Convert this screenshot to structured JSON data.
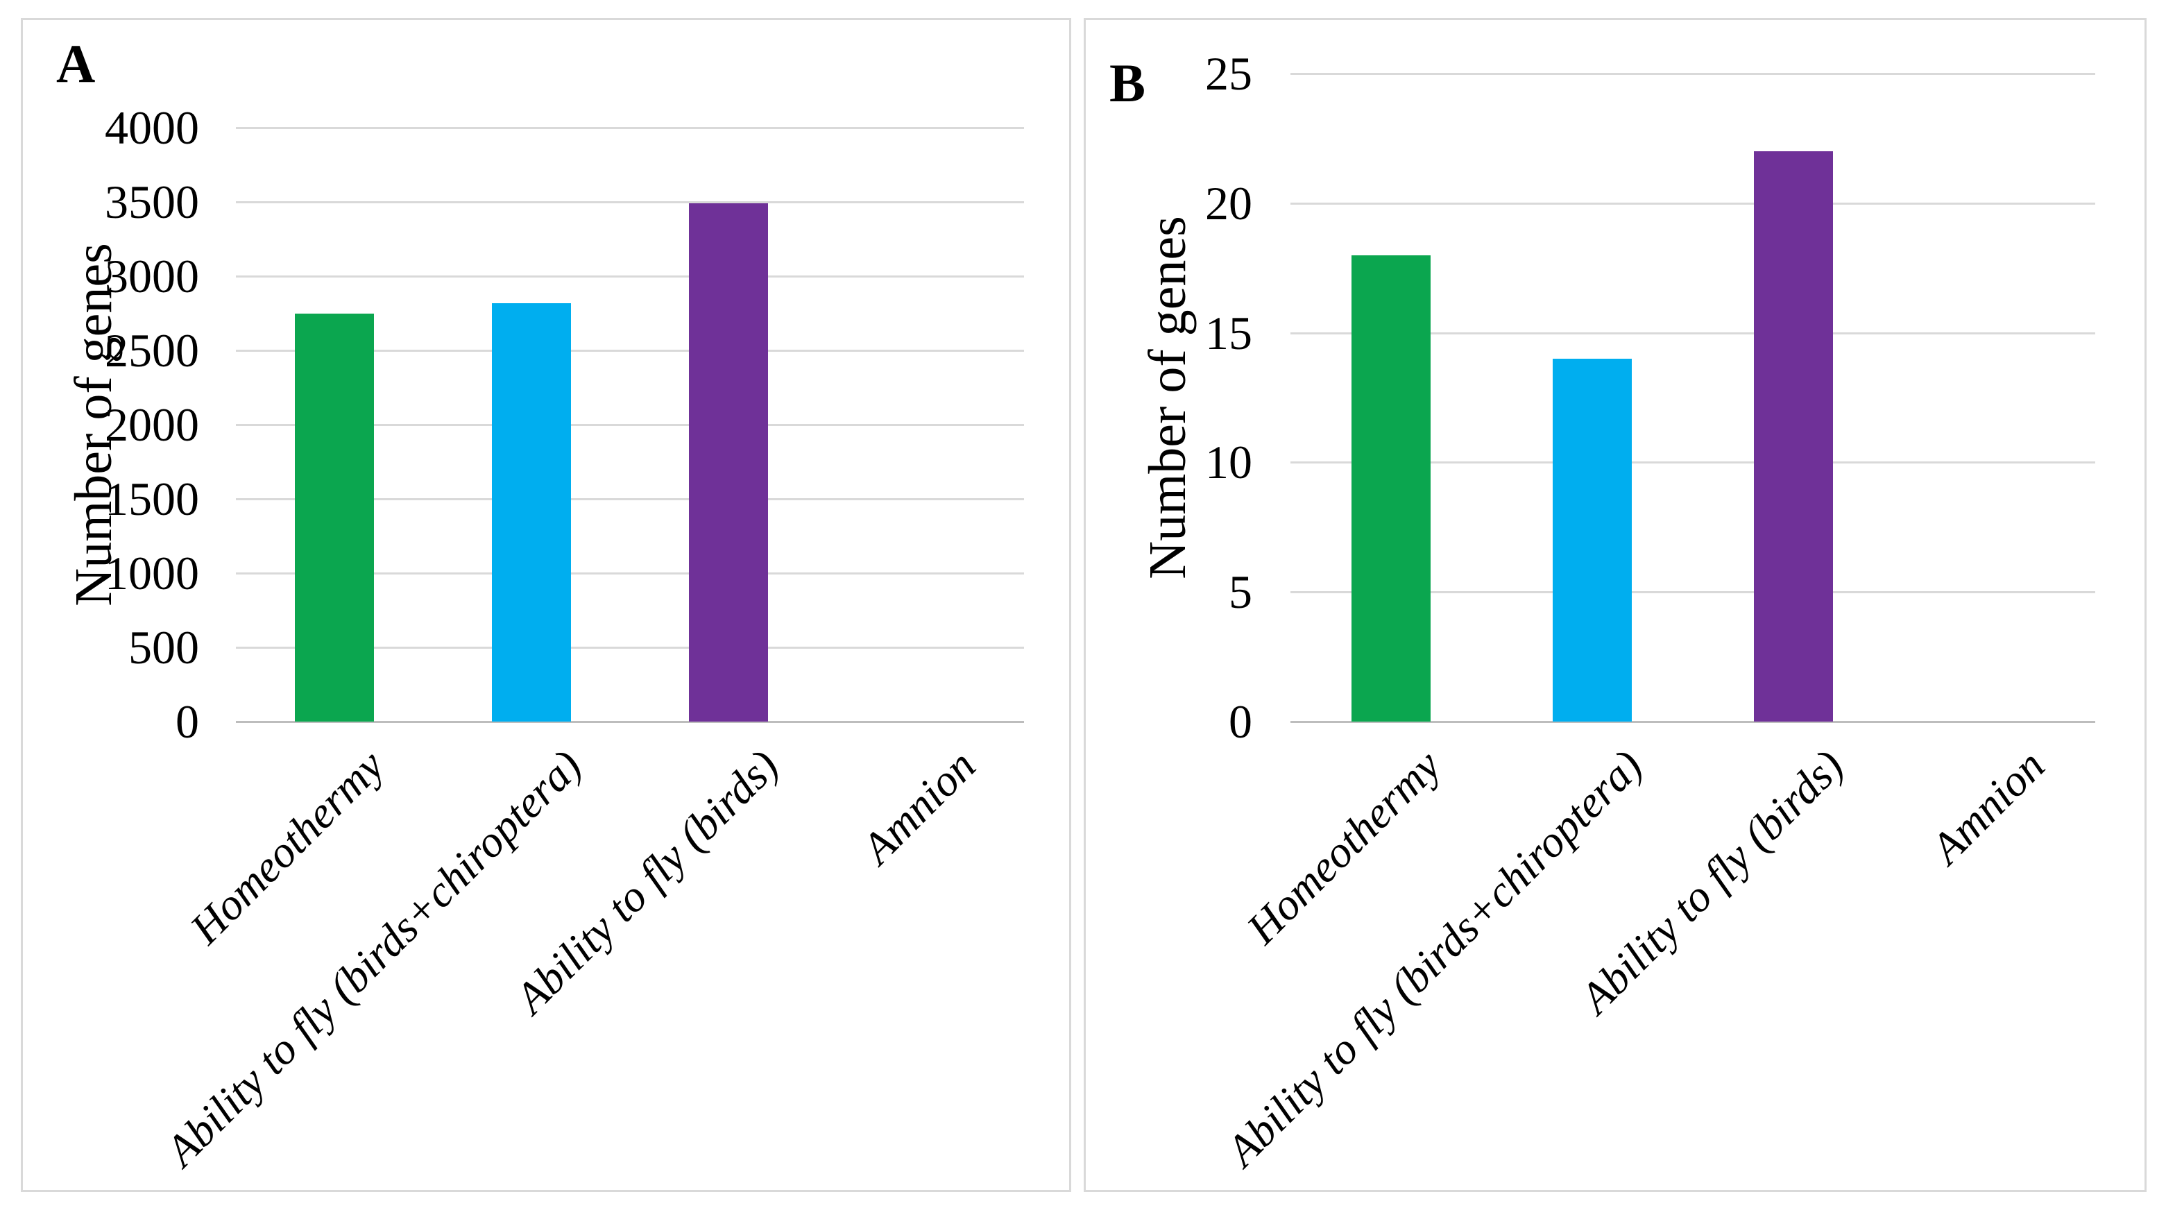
{
  "figure": {
    "panels": [
      {
        "panel_label": "A"
      },
      {
        "panel_label": "B"
      }
    ]
  },
  "chart_data": [
    {
      "type": "bar",
      "panel": "A",
      "title": "",
      "categories": [
        "Homeothermy",
        "Ability to fly (birds+chiroptera)",
        "Ability to fly (birds)",
        "Amnion"
      ],
      "values": [
        2750,
        2820,
        3490,
        0
      ],
      "bar_colors": [
        "#0ba64f",
        "#00aeef",
        "#6f3198",
        "#0ba64f"
      ],
      "xlabel": "",
      "ylabel": "Number of genes",
      "ylim": [
        0,
        4000
      ],
      "yticks": [
        0,
        500,
        1000,
        1500,
        2000,
        2500,
        3000,
        3500,
        4000
      ],
      "grid": true,
      "legend": false
    },
    {
      "type": "bar",
      "panel": "B",
      "title": "",
      "categories": [
        "Homeothermy",
        "Ability to fly (birds+chiroptera)",
        "Ability to fly (birds)",
        "Amnion"
      ],
      "values": [
        18,
        14,
        22,
        0
      ],
      "bar_colors": [
        "#0ba64f",
        "#00aeef",
        "#6f3198",
        "#0ba64f"
      ],
      "xlabel": "",
      "ylabel": "Number of genes",
      "ylim": [
        0,
        25
      ],
      "yticks": [
        0,
        5,
        10,
        15,
        20,
        25
      ],
      "grid": true,
      "legend": false
    }
  ],
  "colors": {
    "bar_green": "#0ba64f",
    "bar_blue": "#00aeef",
    "bar_purple": "#6f3198",
    "gridline": "#d9d9d9",
    "axis_line": "#bdbdbd",
    "panel_border": "#d9d9d9",
    "text": "#000000",
    "background": "#ffffff"
  }
}
